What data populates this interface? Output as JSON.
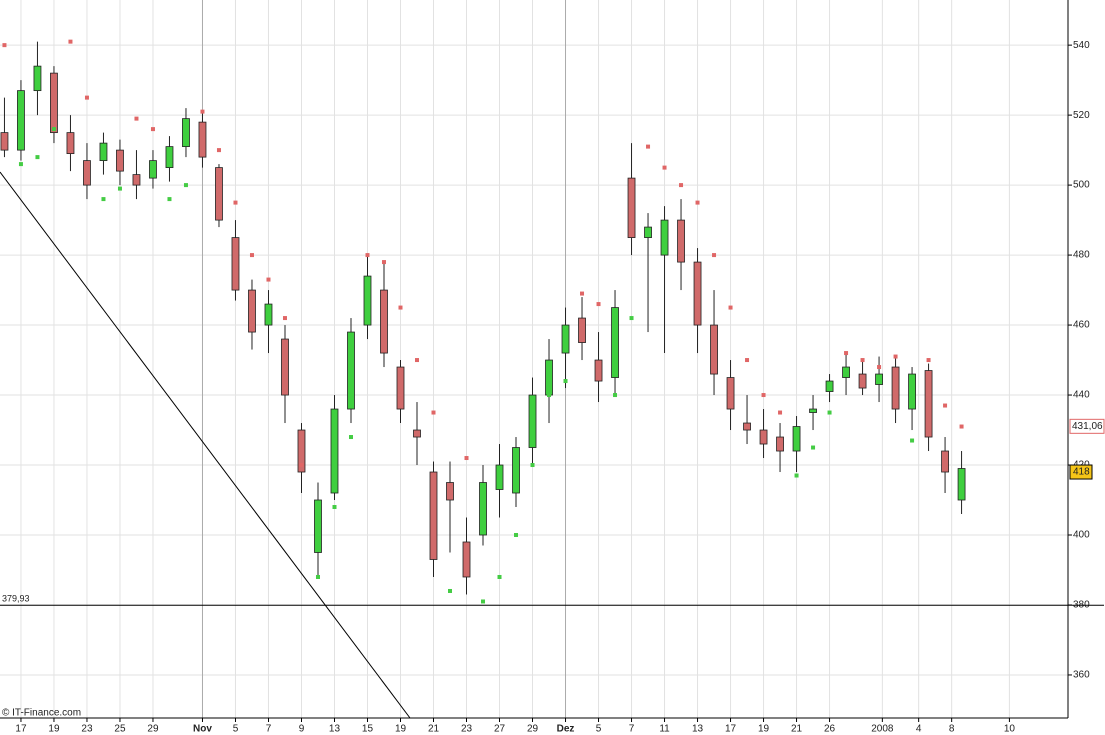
{
  "chart_data": {
    "type": "candlestick",
    "copyright": "© IT-Finance.com",
    "xlim": [
      -0.27,
      64.45
    ],
    "xticks": [
      {
        "value": 1,
        "label": "17"
      },
      {
        "value": 3,
        "label": "19"
      },
      {
        "value": 5,
        "label": "23"
      },
      {
        "value": 7,
        "label": "25"
      },
      {
        "value": 9,
        "label": "29"
      },
      {
        "value": 12,
        "label": "Nov"
      },
      {
        "value": 14,
        "label": "5"
      },
      {
        "value": 16,
        "label": "7"
      },
      {
        "value": 18,
        "label": "9"
      },
      {
        "value": 20,
        "label": "13"
      },
      {
        "value": 22,
        "label": "15"
      },
      {
        "value": 24,
        "label": "19"
      },
      {
        "value": 26,
        "label": "21"
      },
      {
        "value": 28,
        "label": "23"
      },
      {
        "value": 30,
        "label": "27"
      },
      {
        "value": 32,
        "label": "29"
      },
      {
        "value": 34,
        "label": "Dez"
      },
      {
        "value": 36,
        "label": "5"
      },
      {
        "value": 38,
        "label": "7"
      },
      {
        "value": 40,
        "label": "11"
      },
      {
        "value": 42,
        "label": "13"
      },
      {
        "value": 44,
        "label": "17"
      },
      {
        "value": 46,
        "label": "19"
      },
      {
        "value": 48,
        "label": "21"
      },
      {
        "value": 50,
        "label": "26"
      },
      {
        "value": 53.2,
        "label": "2008"
      },
      {
        "value": 55.4,
        "label": "4"
      },
      {
        "value": 57.4,
        "label": "8"
      },
      {
        "value": 60.9,
        "label": "10"
      }
    ],
    "ylim": [
      347.7,
      552.9
    ],
    "yticks": [
      360,
      380,
      400,
      420,
      440,
      460,
      480,
      500,
      520,
      540
    ],
    "up_color": "#3fcf3f",
    "down_color": "#d06a6a",
    "x": [
      0,
      1,
      2,
      3,
      4,
      5,
      6,
      7,
      8,
      9,
      10,
      11,
      12,
      13,
      14,
      15,
      16,
      17,
      18,
      19,
      20,
      21,
      22,
      23,
      24,
      25,
      26,
      27,
      28,
      29,
      30,
      31,
      32,
      33,
      34,
      35,
      36,
      37,
      38,
      39,
      40,
      41,
      42,
      43,
      44,
      45,
      46,
      47,
      48,
      49,
      50,
      51,
      52,
      53,
      54,
      55,
      56,
      57,
      58
    ],
    "open": [
      515,
      510,
      527,
      532,
      515,
      507,
      507,
      510,
      503,
      502,
      505,
      511,
      518,
      505,
      485,
      470,
      460,
      456,
      430,
      395,
      412,
      436,
      460,
      470,
      448,
      430,
      418,
      415,
      398,
      400,
      413,
      412,
      425,
      440,
      452,
      462,
      450,
      445,
      502,
      485,
      480,
      490,
      478,
      460,
      445,
      432,
      430,
      428,
      424,
      435,
      441,
      445,
      446,
      443,
      448,
      436,
      447,
      424,
      410
    ],
    "high": [
      525,
      530,
      541,
      534,
      520,
      512,
      515,
      513,
      510,
      510,
      514,
      522,
      521,
      506,
      490,
      473,
      470,
      460,
      432,
      415,
      440,
      462,
      480,
      478,
      450,
      438,
      421,
      421,
      405,
      420,
      426,
      428,
      445,
      456,
      465,
      468,
      458,
      470,
      512,
      492,
      494,
      496,
      482,
      470,
      450,
      440,
      436,
      432,
      434,
      440,
      446,
      452,
      450,
      451,
      451,
      448,
      449,
      428,
      424
    ],
    "low": [
      508,
      507,
      520,
      512,
      504,
      496,
      503,
      500,
      496,
      499,
      501,
      508,
      505,
      488,
      467,
      453,
      452,
      432,
      412,
      388,
      410,
      432,
      456,
      448,
      432,
      420,
      388,
      395,
      383,
      397,
      405,
      408,
      420,
      432,
      442,
      450,
      438,
      440,
      480,
      458,
      452,
      470,
      452,
      440,
      430,
      426,
      422,
      418,
      418,
      430,
      438,
      440,
      440,
      438,
      432,
      430,
      424,
      412,
      406
    ],
    "close": [
      510,
      527,
      534,
      515,
      509,
      500,
      512,
      504,
      500,
      507,
      511,
      519,
      508,
      490,
      470,
      458,
      466,
      440,
      418,
      410,
      436,
      458,
      474,
      452,
      436,
      428,
      393,
      410,
      388,
      415,
      420,
      425,
      440,
      450,
      460,
      455,
      444,
      465,
      485,
      488,
      490,
      478,
      460,
      446,
      436,
      430,
      426,
      424,
      431,
      436,
      444,
      448,
      442,
      446,
      436,
      446,
      428,
      418,
      419
    ],
    "sar_up": [
      null,
      506,
      508,
      516,
      null,
      null,
      496,
      499,
      null,
      null,
      496,
      500,
      null,
      null,
      null,
      null,
      null,
      null,
      null,
      388,
      408,
      428,
      null,
      null,
      null,
      null,
      null,
      384,
      null,
      381,
      388,
      400,
      420,
      440,
      444,
      null,
      null,
      440,
      462,
      null,
      null,
      null,
      null,
      null,
      null,
      null,
      null,
      null,
      417,
      425,
      435,
      null,
      null,
      null,
      null,
      427,
      null,
      null,
      null
    ],
    "sar_down": [
      540,
      null,
      null,
      null,
      541,
      525,
      null,
      null,
      519,
      516,
      null,
      null,
      521,
      510,
      495,
      480,
      473,
      462,
      420,
      null,
      null,
      null,
      480,
      478,
      465,
      450,
      435,
      null,
      422,
      null,
      null,
      null,
      null,
      null,
      null,
      469,
      466,
      null,
      null,
      511,
      505,
      500,
      495,
      480,
      465,
      450,
      440,
      435,
      null,
      null,
      null,
      452,
      450,
      448,
      451,
      null,
      450,
      437,
      431
    ],
    "sar_up_color": "#44cc44",
    "sar_down_color": "#e06666",
    "support": {
      "value": 379.93,
      "label": "379,93"
    },
    "last_sar": {
      "value": 431.06,
      "label": "431,06"
    },
    "last_price": 418
  }
}
